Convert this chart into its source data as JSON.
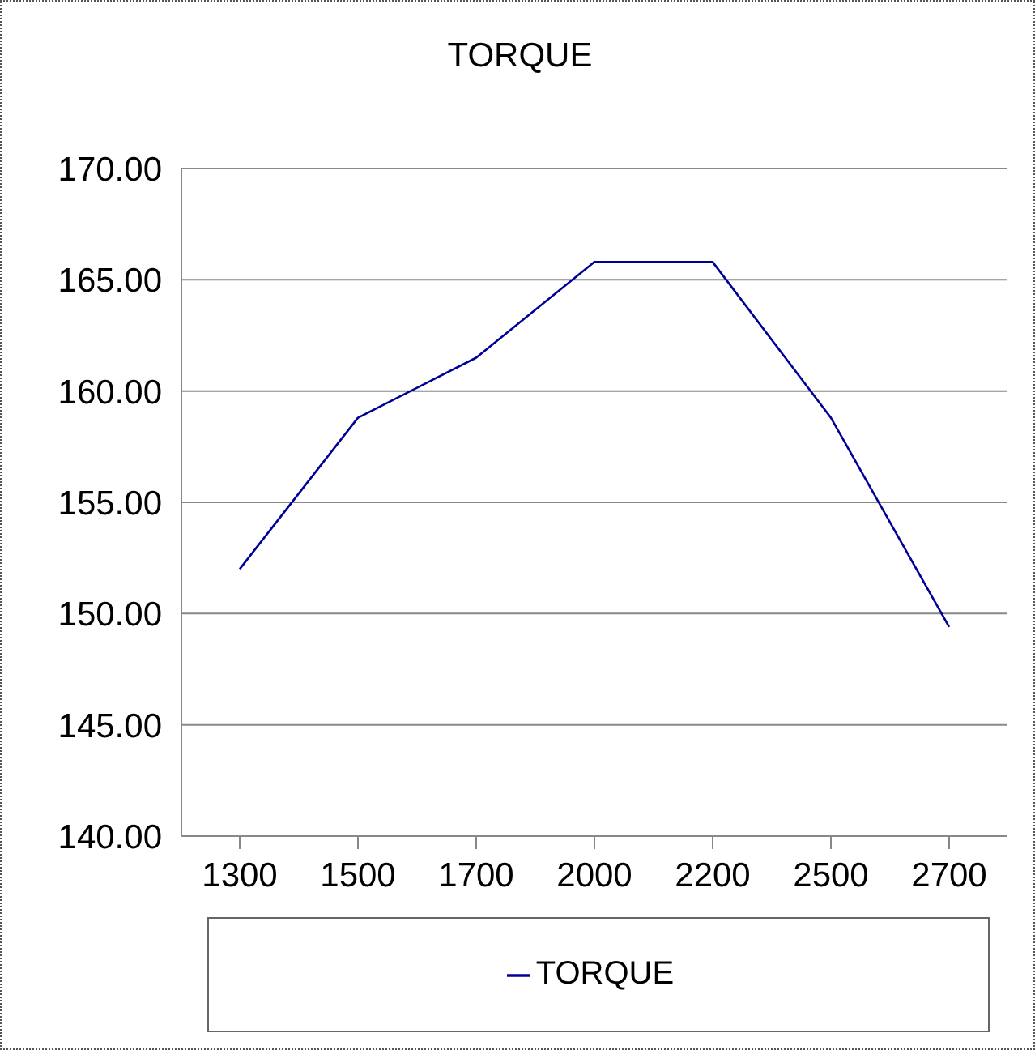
{
  "chart_data": {
    "type": "line",
    "title": "TORQUE",
    "categories": [
      "1300",
      "1500",
      "1700",
      "2000",
      "2200",
      "2500",
      "2700"
    ],
    "series": [
      {
        "name": "TORQUE",
        "color": "#000099",
        "values": [
          152.0,
          158.8,
          161.5,
          165.8,
          165.8,
          158.8,
          149.4
        ]
      }
    ],
    "ylim": [
      140,
      170
    ],
    "yticks": [
      {
        "value": 140,
        "label": "140.00"
      },
      {
        "value": 145,
        "label": "145.00"
      },
      {
        "value": 150,
        "label": "150.00"
      },
      {
        "value": 155,
        "label": "155.00"
      },
      {
        "value": 160,
        "label": "160.00"
      },
      {
        "value": 165,
        "label": "165.00"
      },
      {
        "value": 170,
        "label": "170.00"
      }
    ],
    "grid": "y",
    "legend": "bottom",
    "marker": "none",
    "line_style": "solid"
  }
}
